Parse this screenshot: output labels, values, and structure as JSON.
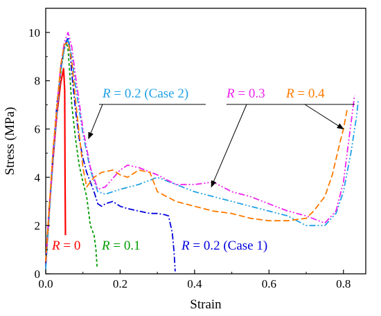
{
  "chart_data": {
    "type": "line",
    "xlabel": "Strain",
    "ylabel": "Stress (MPa)",
    "xlim": [
      0,
      0.86
    ],
    "ylim": [
      0,
      11
    ],
    "xticks": [
      0.0,
      0.2,
      0.4,
      0.6,
      0.8
    ],
    "xtick_labels": [
      "0.0",
      "0.2",
      "0.4",
      "0.6",
      "0.8"
    ],
    "yticks": [
      0,
      2,
      4,
      6,
      8,
      10
    ],
    "ytick_labels": [
      "0",
      "2",
      "4",
      "6",
      "8",
      "10"
    ],
    "grid": false,
    "legend": "none (curves labelled directly)",
    "series": [
      {
        "label_var": "R",
        "label_rest": " = 0",
        "color": "#ff0000",
        "dash": "solid",
        "x": [
          0.0,
          0.01,
          0.02,
          0.03,
          0.04,
          0.048,
          0.051,
          0.052,
          0.053
        ],
        "y": [
          0.4,
          2.8,
          4.8,
          6.6,
          7.9,
          8.5,
          7.6,
          4.0,
          1.6
        ]
      },
      {
        "label_var": "R",
        "label_rest": " = 0.1",
        "color": "#009a00",
        "dash": "short",
        "x": [
          0.0,
          0.01,
          0.02,
          0.03,
          0.04,
          0.05,
          0.055,
          0.06,
          0.065,
          0.07,
          0.08,
          0.09,
          0.1,
          0.11,
          0.115,
          0.12,
          0.13,
          0.135,
          0.138
        ],
        "y": [
          0.5,
          2.8,
          5.0,
          6.8,
          8.3,
          9.4,
          9.6,
          9.3,
          8.2,
          7.0,
          5.6,
          4.5,
          3.8,
          3.2,
          2.6,
          2.0,
          1.6,
          1.0,
          0.3
        ]
      },
      {
        "label_var": "R",
        "label_rest": " = 0.2 (Case 1)",
        "color": "#0000dd",
        "dash": "dashdot",
        "x": [
          0.0,
          0.01,
          0.02,
          0.03,
          0.04,
          0.05,
          0.06,
          0.065,
          0.07,
          0.08,
          0.09,
          0.1,
          0.11,
          0.12,
          0.13,
          0.14,
          0.15,
          0.16,
          0.18,
          0.2,
          0.22,
          0.25,
          0.28,
          0.3,
          0.32,
          0.33,
          0.34,
          0.345,
          0.348
        ],
        "y": [
          0.3,
          2.8,
          5.0,
          7.0,
          8.5,
          9.4,
          9.8,
          9.3,
          8.3,
          6.8,
          5.6,
          4.8,
          4.2,
          3.8,
          3.4,
          2.9,
          2.8,
          2.9,
          3.0,
          2.8,
          2.7,
          2.6,
          2.5,
          2.5,
          2.45,
          2.4,
          1.7,
          0.9,
          0.1
        ]
      },
      {
        "label_var": "R",
        "label_rest": " = 0.2 (Case 2)",
        "color": "#1ea0e6",
        "dash": "dashdotdot",
        "x": [
          0.0,
          0.02,
          0.04,
          0.05,
          0.06,
          0.07,
          0.08,
          0.1,
          0.12,
          0.14,
          0.16,
          0.2,
          0.25,
          0.3,
          0.35,
          0.4,
          0.45,
          0.5,
          0.55,
          0.6,
          0.65,
          0.7,
          0.75,
          0.78,
          0.8,
          0.82,
          0.835,
          0.84
        ],
        "y": [
          0.2,
          4.8,
          8.4,
          9.3,
          9.7,
          9.0,
          7.8,
          5.8,
          4.3,
          3.4,
          3.3,
          3.5,
          3.7,
          4.0,
          3.7,
          3.4,
          3.2,
          3.0,
          2.8,
          2.6,
          2.4,
          2.0,
          2.0,
          2.5,
          3.4,
          5.0,
          6.5,
          7.2
        ]
      },
      {
        "label_var": "R",
        "label_rest": " = 0.3",
        "color": "#ee22ee",
        "dash": "dashdotdot",
        "x": [
          0.0,
          0.02,
          0.04,
          0.05,
          0.06,
          0.07,
          0.08,
          0.1,
          0.12,
          0.14,
          0.16,
          0.2,
          0.22,
          0.25,
          0.3,
          0.35,
          0.4,
          0.45,
          0.5,
          0.55,
          0.6,
          0.65,
          0.7,
          0.75,
          0.78,
          0.8,
          0.81,
          0.82,
          0.83
        ],
        "y": [
          0.5,
          5.0,
          8.6,
          9.6,
          10.0,
          9.4,
          8.2,
          6.0,
          4.4,
          3.5,
          3.6,
          4.3,
          4.5,
          4.4,
          4.1,
          3.7,
          3.7,
          3.8,
          3.4,
          3.2,
          2.9,
          2.6,
          2.4,
          2.1,
          2.6,
          3.8,
          5.0,
          6.2,
          7.4
        ]
      },
      {
        "label_var": "R",
        "label_rest": " = 0.4",
        "color": "#ff7a00",
        "dash": "dash",
        "x": [
          0.0,
          0.02,
          0.04,
          0.05,
          0.06,
          0.07,
          0.08,
          0.1,
          0.11,
          0.13,
          0.15,
          0.18,
          0.2,
          0.22,
          0.25,
          0.28,
          0.3,
          0.35,
          0.4,
          0.45,
          0.5,
          0.55,
          0.6,
          0.65,
          0.7,
          0.72,
          0.75,
          0.77,
          0.79,
          0.8,
          0.81
        ],
        "y": [
          0.5,
          5.2,
          8.6,
          9.5,
          9.6,
          8.8,
          7.2,
          4.4,
          3.6,
          4.0,
          4.2,
          4.3,
          4.1,
          4.0,
          4.3,
          4.2,
          3.4,
          3.0,
          2.8,
          2.6,
          2.5,
          2.3,
          2.2,
          2.2,
          2.3,
          2.6,
          3.2,
          4.1,
          5.4,
          6.0,
          6.8
        ]
      }
    ],
    "annotations": [
      {
        "id": "r0",
        "series": 0,
        "var": "R",
        "rest": " = 0",
        "arrow": false
      },
      {
        "id": "r01",
        "series": 1,
        "var": "R",
        "rest": " = 0.1",
        "arrow": false
      },
      {
        "id": "r02c1",
        "series": 2,
        "var": "R",
        "rest": " = 0.2 (Case 1)",
        "arrow": false
      },
      {
        "id": "r02c2",
        "series": 3,
        "var": "R",
        "rest": " = 0.2 (Case 2)",
        "arrow": true,
        "arrow_to": [
          0.115,
          5.6
        ]
      },
      {
        "id": "r03",
        "series": 4,
        "var": "R",
        "rest": " = 0.3",
        "arrow": true,
        "arrow_to": [
          0.445,
          3.6
        ]
      },
      {
        "id": "r04",
        "series": 5,
        "var": "R",
        "rest": " = 0.4",
        "arrow": true,
        "arrow_to": [
          0.8,
          6.0
        ]
      }
    ]
  }
}
